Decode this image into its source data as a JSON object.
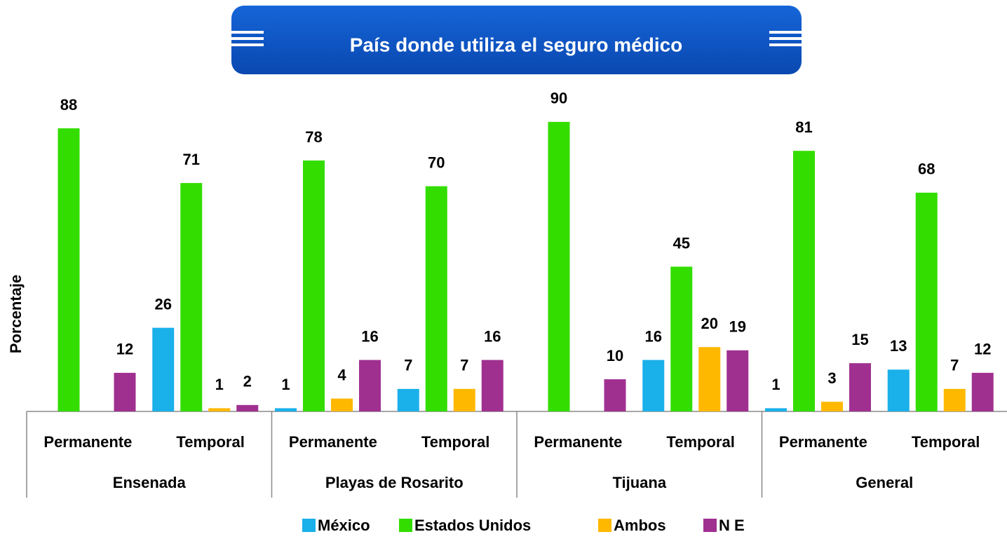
{
  "chart_data": {
    "type": "bar",
    "title": "País donde utiliza  el seguro médico",
    "y_label": "Porcentaje",
    "groups": [
      "Ensenada",
      "Playas de Rosarito",
      "Tijuana",
      "General"
    ],
    "categories": [
      "Permanente",
      "Temporal",
      "Permanente",
      "Temporal",
      "Permanente",
      "Temporal",
      "Permanente",
      "Temporal"
    ],
    "series": [
      {
        "name": "México",
        "color": "#1ab0ea",
        "values": [
          null,
          26,
          1,
          7,
          null,
          16,
          1,
          13
        ]
      },
      {
        "name": "Estados Unidos",
        "color": "#33dd00",
        "values": [
          88,
          71,
          78,
          70,
          90,
          45,
          81,
          68
        ]
      },
      {
        "name": "Ambos",
        "color": "#ffb800",
        "values": [
          null,
          1,
          4,
          7,
          null,
          20,
          3,
          7
        ]
      },
      {
        "name": "N E",
        "color": "#a03090",
        "values": [
          12,
          2,
          16,
          16,
          10,
          19,
          15,
          12
        ]
      }
    ],
    "ylim": [
      0,
      100
    ]
  }
}
